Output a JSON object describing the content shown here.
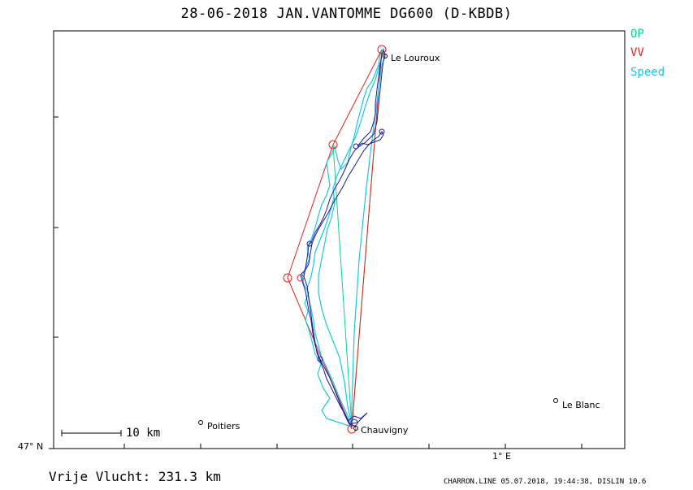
{
  "title": "28-06-2018    JAN.VANTOMME    DG600 (D-KBDB)",
  "legend": [
    {
      "label": "OP",
      "color": "#00d890"
    },
    {
      "label": "VV",
      "color": "#e8201a"
    },
    {
      "label": "Speed",
      "color": "#19c8e0"
    }
  ],
  "track_color": "#1a1a9a",
  "places": [
    {
      "name": "Le Louroux"
    },
    {
      "name": "Poitiers"
    },
    {
      "name": "Chauvigny"
    },
    {
      "name": "Le Blanc"
    }
  ],
  "scale": {
    "label": "10 km"
  },
  "axes": {
    "lat_label": "47° N",
    "lon_label": "1° E"
  },
  "distance_text": "Vrije Vlucht:  231.3 km",
  "footer": "CHARRON.LINE 05.07.2018, 19:44:38, DISLIN 10.6"
}
